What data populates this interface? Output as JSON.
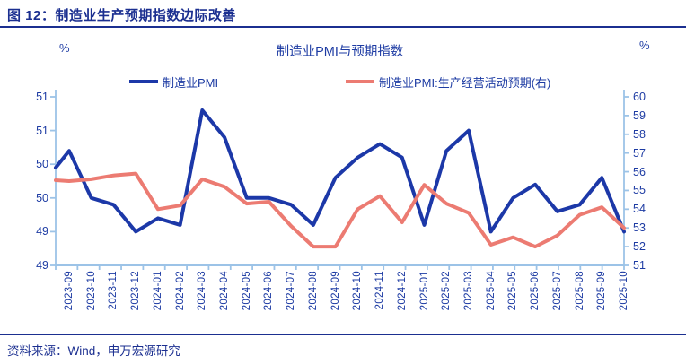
{
  "figure": {
    "title": "图 12：制造业生产预期指数边际改善",
    "source": "资料来源：Wind，申万宏源研究"
  },
  "chart_data": {
    "type": "line",
    "title": "制造业PMI与预期指数",
    "grid": false,
    "legend_position": "top",
    "axis_color": "#9cc3e7",
    "left_axis": {
      "unit": "%",
      "range": [
        48.5,
        51.0
      ],
      "tick_step": 0.5,
      "tick_labels": [
        "51",
        "51",
        "50",
        "50",
        "49",
        "49"
      ]
    },
    "right_axis": {
      "unit": "%",
      "range": [
        51,
        60
      ],
      "tick_step": 1,
      "tick_labels": [
        "60",
        "59",
        "58",
        "57",
        "56",
        "55",
        "54",
        "53",
        "52",
        "51"
      ]
    },
    "categories": [
      "2023-09",
      "2023-10",
      "2023-11",
      "2023-12",
      "2024-01",
      "2024-02",
      "2024-03",
      "2024-04",
      "2024-05",
      "2024-06",
      "2024-07",
      "2024-08",
      "2024-09",
      "2024-10",
      "2024-11",
      "2024-12",
      "2025-01",
      "2025-02",
      "2025-03",
      "2025-04",
      "2025-05",
      "2025-06",
      "2025-07",
      "2025-08",
      "2025-09",
      "2025-10"
    ],
    "series": [
      {
        "name": "制造业PMI",
        "axis": "left",
        "color": "#1c38a8",
        "values": [
          50.2,
          49.5,
          49.4,
          49.0,
          49.2,
          49.1,
          50.8,
          50.4,
          49.5,
          49.5,
          49.4,
          49.1,
          49.8,
          50.1,
          50.3,
          50.1,
          49.1,
          50.2,
          50.5,
          49.0,
          49.5,
          49.7,
          49.3,
          49.4,
          49.8,
          49.0
        ],
        "clipped_lead_in_value": 49.95
      },
      {
        "name": "制造业PMI:生产经营活动预期(右)",
        "axis": "right",
        "color": "#ec7b72",
        "values": [
          55.5,
          55.6,
          55.8,
          55.9,
          54.0,
          54.2,
          55.6,
          55.2,
          54.3,
          54.4,
          53.1,
          52.0,
          52.0,
          54.0,
          54.7,
          53.3,
          55.3,
          54.3,
          53.8,
          52.1,
          52.5,
          52.0,
          52.6,
          53.7,
          54.1,
          53.0
        ],
        "clipped_lead_in_value": 55.55
      }
    ]
  }
}
